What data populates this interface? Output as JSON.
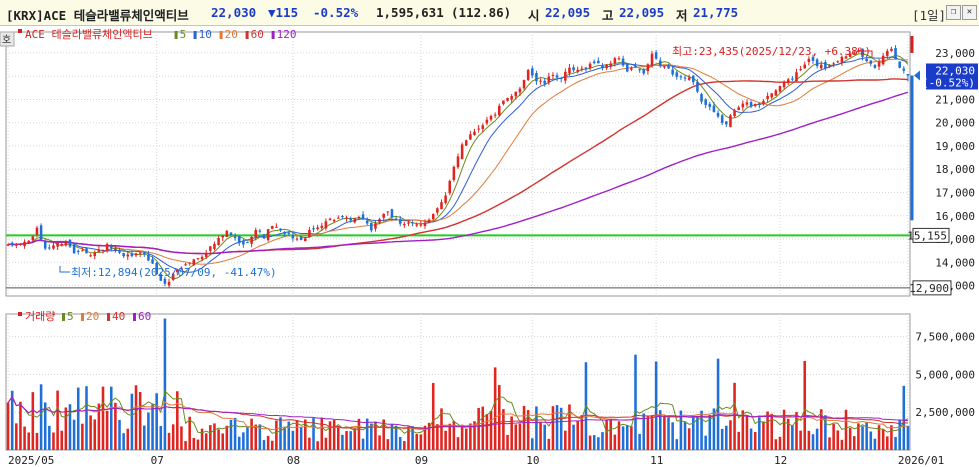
{
  "header": {
    "code_name": "[KRX]ACE 테슬라밸류체인액티브",
    "price": "22,030",
    "change": "▼115",
    "change_pct": "-0.52%",
    "volume": "1,595,631",
    "volume_ratio": "(112.86)",
    "open_label": "시",
    "open": "22,095",
    "high_label": "고",
    "high": "22,095",
    "low_label": "저",
    "low": "21,775",
    "period": "[1일]"
  },
  "price_panel": {
    "badge": "호",
    "legend_name": "ACE 테슬라밸류체인액티브",
    "ma_legend": [
      {
        "label": "5",
        "color": "#6a8c1e"
      },
      {
        "label": "10",
        "color": "#2f5fd0"
      },
      {
        "label": "20",
        "color": "#e07a3a"
      },
      {
        "label": "60",
        "color": "#d0342c"
      },
      {
        "label": "120",
        "color": "#a020c8"
      }
    ],
    "max_annotation": "최고:23,435(2025/12/23, +6.38%)",
    "min_annotation": "최저:12,894(2025/07/09, -41.47%)",
    "current_price_box": "22,030",
    "current_pct_box": "(-0.52%)",
    "line_value_box": "15,155",
    "low_value_box": "12,900"
  },
  "volume_panel": {
    "legend_name": "거래량",
    "ma_legend": [
      {
        "label": "5",
        "color": "#6a8c1e"
      },
      {
        "label": "20",
        "color": "#e07a3a"
      },
      {
        "label": "40",
        "color": "#d0342c"
      },
      {
        "label": "60",
        "color": "#a020c8"
      }
    ]
  },
  "chart_data": {
    "type": "candlestick",
    "price_axis": {
      "ylim": [
        12550,
        23900
      ],
      "ticks": [
        {
          "v": 23000,
          "label": "23,000"
        },
        {
          "v": 22000,
          "label": "22,000"
        },
        {
          "v": 21000,
          "label": "21,000"
        },
        {
          "v": 20000,
          "label": "20,000"
        },
        {
          "v": 19000,
          "label": "19,000"
        },
        {
          "v": 18000,
          "label": "18,000"
        },
        {
          "v": 17000,
          "label": "17,000"
        },
        {
          "v": 16000,
          "label": "16,000"
        },
        {
          "v": 15000,
          "label": "15,000"
        },
        {
          "v": 14000,
          "label": "14,000"
        },
        {
          "v": 13000,
          "label": "13,000"
        }
      ]
    },
    "volume_axis": {
      "ylim": [
        0,
        9000000
      ],
      "ticks": [
        {
          "v": 7500000,
          "label": "7,500,000"
        },
        {
          "v": 5000000,
          "label": "5,000,000"
        },
        {
          "v": 2500000,
          "label": "2,500,000"
        }
      ]
    },
    "horizontal_lines": [
      {
        "value": 15155,
        "color": "#22cc22"
      },
      {
        "value": 12900,
        "color": "#555555"
      }
    ],
    "x_labels": [
      {
        "index": 0,
        "label": "2025/05"
      },
      {
        "index": 36,
        "label": "07"
      },
      {
        "index": 69,
        "label": "08"
      },
      {
        "index": 100,
        "label": "09"
      },
      {
        "index": 127,
        "label": "10"
      },
      {
        "index": 157,
        "label": "11"
      },
      {
        "index": 187,
        "label": "12"
      },
      {
        "index": 218,
        "label": "2026/01"
      }
    ],
    "anchors": [
      [
        0,
        14700
      ],
      [
        5,
        14900
      ],
      [
        7,
        15400
      ],
      [
        9,
        14600
      ],
      [
        12,
        14800
      ],
      [
        14,
        14900
      ],
      [
        16,
        14400
      ],
      [
        18,
        14600
      ],
      [
        20,
        14300
      ],
      [
        24,
        14700
      ],
      [
        26,
        14500
      ],
      [
        28,
        14200
      ],
      [
        30,
        14300
      ],
      [
        33,
        14400
      ],
      [
        35,
        13900
      ],
      [
        36,
        13500
      ],
      [
        38,
        13000
      ],
      [
        41,
        13700
      ],
      [
        44,
        14000
      ],
      [
        47,
        14300
      ],
      [
        50,
        14800
      ],
      [
        53,
        15300
      ],
      [
        55,
        15000
      ],
      [
        57,
        14700
      ],
      [
        60,
        15400
      ],
      [
        62,
        15100
      ],
      [
        64,
        15600
      ],
      [
        67,
        15200
      ],
      [
        69,
        15100
      ],
      [
        71,
        14900
      ],
      [
        73,
        15300
      ],
      [
        75,
        15500
      ],
      [
        77,
        15800
      ],
      [
        80,
        15900
      ],
      [
        83,
        15800
      ],
      [
        86,
        15900
      ],
      [
        88,
        15400
      ],
      [
        90,
        15900
      ],
      [
        92,
        16100
      ],
      [
        95,
        15700
      ],
      [
        98,
        15600
      ],
      [
        100,
        15600
      ],
      [
        102,
        15900
      ],
      [
        104,
        16300
      ],
      [
        106,
        16800
      ],
      [
        108,
        18100
      ],
      [
        110,
        19100
      ],
      [
        112,
        19500
      ],
      [
        114,
        19800
      ],
      [
        116,
        20100
      ],
      [
        118,
        20400
      ],
      [
        120,
        20900
      ],
      [
        122,
        21100
      ],
      [
        124,
        21500
      ],
      [
        126,
        22300
      ],
      [
        128,
        21800
      ],
      [
        130,
        21700
      ],
      [
        132,
        22100
      ],
      [
        134,
        21900
      ],
      [
        136,
        22300
      ],
      [
        138,
        22200
      ],
      [
        140,
        22400
      ],
      [
        142,
        22600
      ],
      [
        144,
        22400
      ],
      [
        146,
        22600
      ],
      [
        148,
        22800
      ],
      [
        150,
        22200
      ],
      [
        152,
        22400
      ],
      [
        154,
        22100
      ],
      [
        156,
        22900
      ],
      [
        158,
        22500
      ],
      [
        160,
        22300
      ],
      [
        162,
        21900
      ],
      [
        164,
        22000
      ],
      [
        166,
        21800
      ],
      [
        168,
        20900
      ],
      [
        170,
        20600
      ],
      [
        172,
        20200
      ],
      [
        174,
        19900
      ],
      [
        176,
        20600
      ],
      [
        178,
        20900
      ],
      [
        180,
        20700
      ],
      [
        182,
        20800
      ],
      [
        184,
        21200
      ],
      [
        186,
        21300
      ],
      [
        188,
        21800
      ],
      [
        190,
        21900
      ],
      [
        192,
        22300
      ],
      [
        194,
        22700
      ],
      [
        196,
        22500
      ],
      [
        198,
        22400
      ],
      [
        200,
        22600
      ],
      [
        202,
        22800
      ],
      [
        204,
        23000
      ],
      [
        206,
        23200
      ],
      [
        208,
        22600
      ],
      [
        210,
        22300
      ],
      [
        212,
        22900
      ],
      [
        214,
        23200
      ],
      [
        216,
        22400
      ],
      [
        218,
        22030
      ]
    ],
    "ma_series_colors": {
      "ma5": "#6a8c1e",
      "ma10": "#2f5fd0",
      "ma20": "#e07a3a",
      "ma60": "#d0342c",
      "ma120": "#a020c8"
    }
  }
}
